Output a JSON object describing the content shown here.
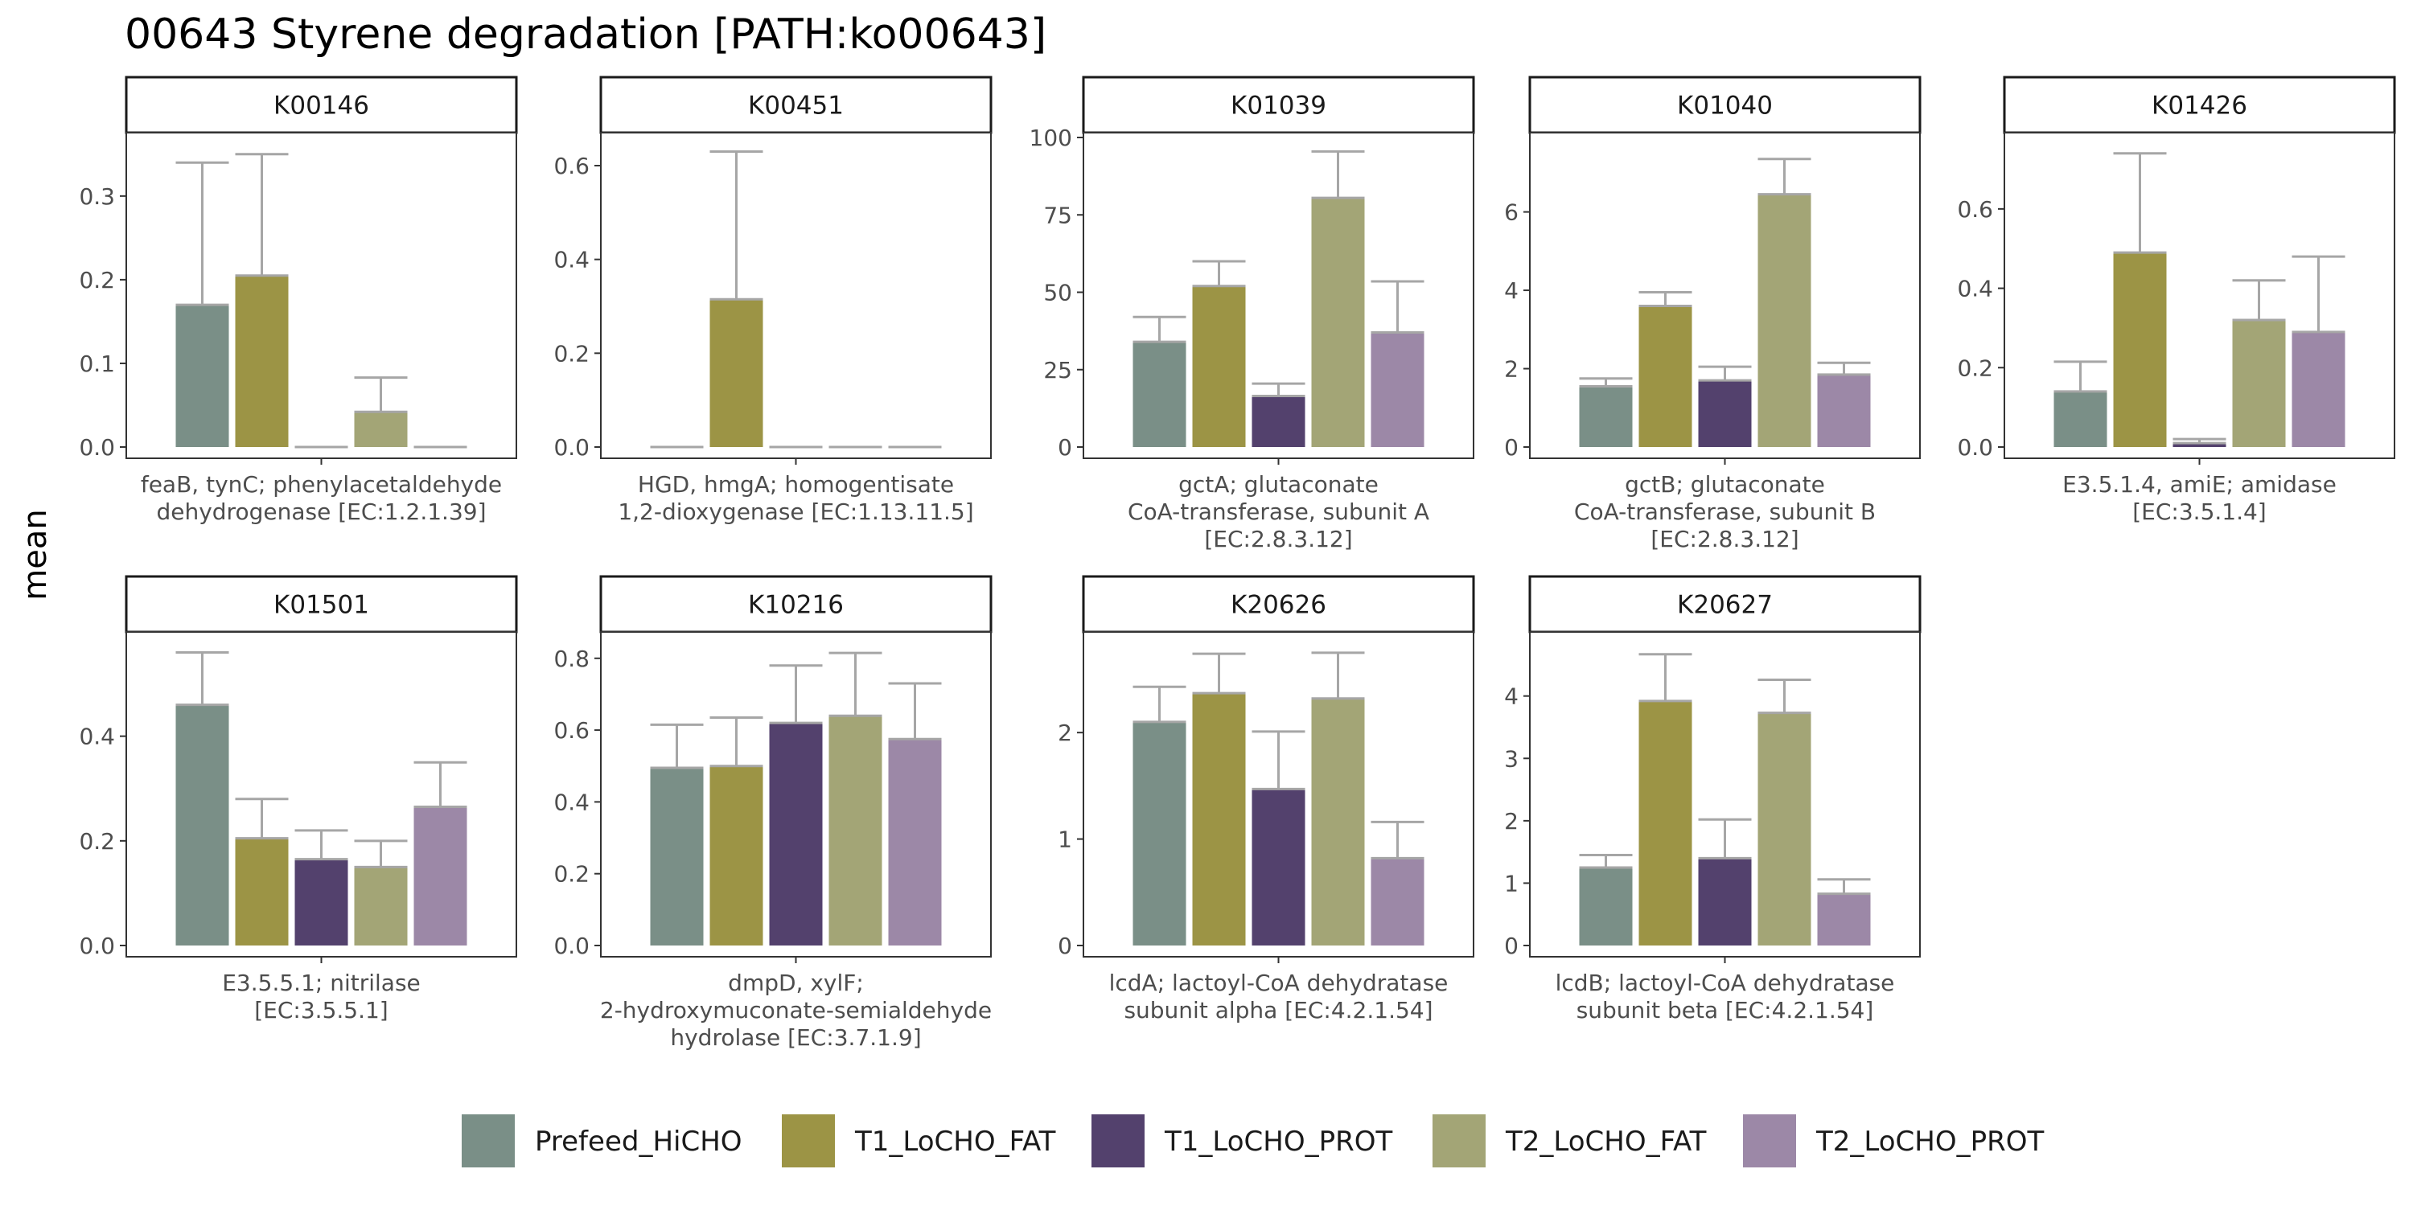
{
  "chart_data": {
    "type": "bar",
    "title": "00643 Styrene degradation [PATH:ko00643]",
    "ylabel": "mean",
    "grid": false,
    "legend_position": "bottom",
    "groups": [
      "Prefeed_HiCHO",
      "T1_LoCHO_FAT",
      "T1_LoCHO_PROT",
      "T2_LoCHO_FAT",
      "T2_LoCHO_PROT"
    ],
    "colors": [
      "#7a8f87",
      "#9c9445",
      "#53416d",
      "#a3a576",
      "#9c88a7"
    ],
    "panels": [
      {
        "id": "K00146",
        "label": [
          "feaB, tynC; phenylacetaldehyde",
          "dehydrogenase [EC:1.2.1.39]"
        ],
        "ylim": [
          0,
          0.37
        ],
        "ticks": [
          0,
          0.1,
          0.2,
          0.3
        ],
        "tick_labels": [
          "0.0",
          "0.1",
          "0.2",
          "0.3"
        ],
        "values": [
          0.17,
          0.205,
          0,
          0.042,
          0
        ],
        "errors": [
          0.34,
          0.35,
          0,
          0.083,
          0
        ]
      },
      {
        "id": "K00451",
        "label": [
          "HGD, hmgA; homogentisate",
          "1,2-dioxygenase [EC:1.13.11.5]"
        ],
        "ylim": [
          0,
          0.66
        ],
        "ticks": [
          0,
          0.2,
          0.4,
          0.6
        ],
        "tick_labels": [
          "0.0",
          "0.2",
          "0.4",
          "0.6"
        ],
        "values": [
          0,
          0.315,
          0,
          0,
          0
        ],
        "errors": [
          0,
          0.63,
          0,
          0,
          0
        ]
      },
      {
        "id": "K01039",
        "label": [
          "gctA; glutaconate",
          "CoA-transferase, subunit A",
          "[EC:2.8.3.12]"
        ],
        "ylim": [
          0,
          100
        ],
        "ticks": [
          0,
          25,
          50,
          75,
          100
        ],
        "tick_labels": [
          "0",
          "25",
          "50",
          "75",
          "100"
        ],
        "values": [
          34,
          52,
          16.5,
          80.5,
          37
        ],
        "errors": [
          42,
          60,
          20.5,
          95.5,
          53.5
        ]
      },
      {
        "id": "K01040",
        "label": [
          "gctB; glutaconate",
          "CoA-transferase, subunit B",
          "[EC:2.8.3.12]"
        ],
        "ylim": [
          0,
          7.9
        ],
        "ticks": [
          0,
          2,
          4,
          6
        ],
        "tick_labels": [
          "0",
          "2",
          "4",
          "6"
        ],
        "values": [
          1.55,
          3.6,
          1.7,
          6.45,
          1.85
        ],
        "errors": [
          1.75,
          3.95,
          2.05,
          7.35,
          2.15
        ]
      },
      {
        "id": "K01426",
        "label": [
          "E3.5.1.4, amiE; amidase",
          "[EC:3.5.1.4]"
        ],
        "ylim": [
          0,
          0.78
        ],
        "ticks": [
          0,
          0.2,
          0.4,
          0.6
        ],
        "tick_labels": [
          "0.0",
          "0.2",
          "0.4",
          "0.6"
        ],
        "values": [
          0.14,
          0.49,
          0.01,
          0.32,
          0.29
        ],
        "errors": [
          0.215,
          0.74,
          0.02,
          0.42,
          0.48
        ]
      },
      {
        "id": "K01501",
        "label": [
          "E3.5.5.1; nitrilase",
          "[EC:3.5.5.1]"
        ],
        "ylim": [
          0,
          0.59
        ],
        "ticks": [
          0,
          0.2,
          0.4
        ],
        "tick_labels": [
          "0.0",
          "0.2",
          "0.4"
        ],
        "values": [
          0.46,
          0.205,
          0.165,
          0.15,
          0.265
        ],
        "errors": [
          0.56,
          0.28,
          0.22,
          0.2,
          0.35
        ]
      },
      {
        "id": "K10216",
        "label": [
          "dmpD, xylF;",
          "2-hydroxymuconate-semialdehyde",
          "hydrolase [EC:3.7.1.9]"
        ],
        "ylim": [
          0,
          0.86
        ],
        "ticks": [
          0,
          0.2,
          0.4,
          0.6,
          0.8
        ],
        "tick_labels": [
          "0.0",
          "0.2",
          "0.4",
          "0.6",
          "0.8"
        ],
        "values": [
          0.495,
          0.5,
          0.62,
          0.64,
          0.575
        ],
        "errors": [
          0.615,
          0.635,
          0.78,
          0.815,
          0.73
        ]
      },
      {
        "id": "K20626",
        "label": [
          "lcdA; lactoyl-CoA dehydratase",
          "subunit alpha [EC:4.2.1.54]"
        ],
        "ylim": [
          0,
          2.9
        ],
        "ticks": [
          0,
          1,
          2
        ],
        "tick_labels": [
          "0",
          "1",
          "2"
        ],
        "values": [
          2.1,
          2.37,
          1.47,
          2.32,
          0.82
        ],
        "errors": [
          2.43,
          2.74,
          2.01,
          2.75,
          1.16
        ]
      },
      {
        "id": "K20627",
        "label": [
          "lcdB; lactoyl-CoA dehydratase",
          "subunit beta [EC:4.2.1.54]"
        ],
        "ylim": [
          0,
          4.95
        ],
        "ticks": [
          0,
          1,
          2,
          3,
          4
        ],
        "tick_labels": [
          "0",
          "1",
          "2",
          "3",
          "4"
        ],
        "values": [
          1.25,
          3.92,
          1.4,
          3.73,
          0.83
        ],
        "errors": [
          1.45,
          4.67,
          2.02,
          4.26,
          1.06
        ]
      }
    ]
  }
}
